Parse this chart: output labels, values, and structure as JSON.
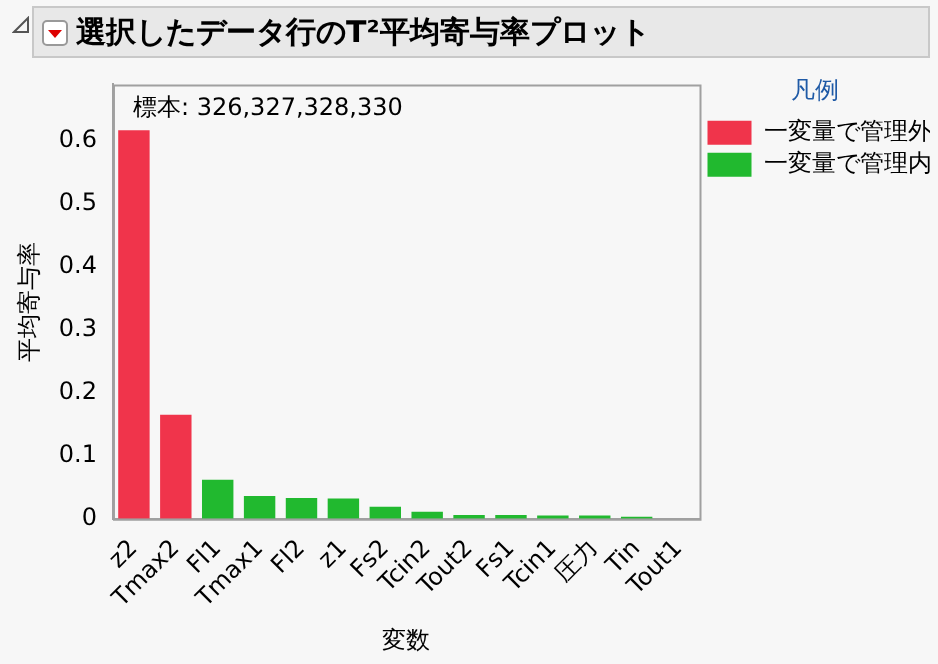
{
  "chart_data": {
    "type": "bar",
    "title": "選択したデータ行のT²平均寄与率プロット",
    "xlabel": "変数",
    "ylabel": "平均寄与率",
    "legend_title": "凡例",
    "annotations": [
      "標本: 326,327,328,330"
    ],
    "categories": [
      "z2",
      "Tmax2",
      "Fl1",
      "Tmax1",
      "Fl2",
      "z1",
      "Fs2",
      "Tcin2",
      "Tout2",
      "Fs1",
      "Tcin1",
      "圧力",
      "Tin",
      "Tout1"
    ],
    "series": [
      {
        "name": "一変量で管理外",
        "color": "#f0344b",
        "values": [
          0.617,
          0.165,
          null,
          null,
          null,
          null,
          null,
          null,
          null,
          null,
          null,
          null,
          null,
          null
        ]
      },
      {
        "name": "一変量で管理内",
        "color": "#21b92f",
        "values": [
          null,
          null,
          0.062,
          0.036,
          0.033,
          0.032,
          0.019,
          0.011,
          0.006,
          0.006,
          0.005,
          0.005,
          0.003,
          0
        ]
      }
    ],
    "ylim": [
      0,
      0.69
    ],
    "yticks": [
      0,
      0.1,
      0.2,
      0.3,
      0.4,
      0.5,
      0.6
    ],
    "grid": false,
    "legend": "top right"
  }
}
